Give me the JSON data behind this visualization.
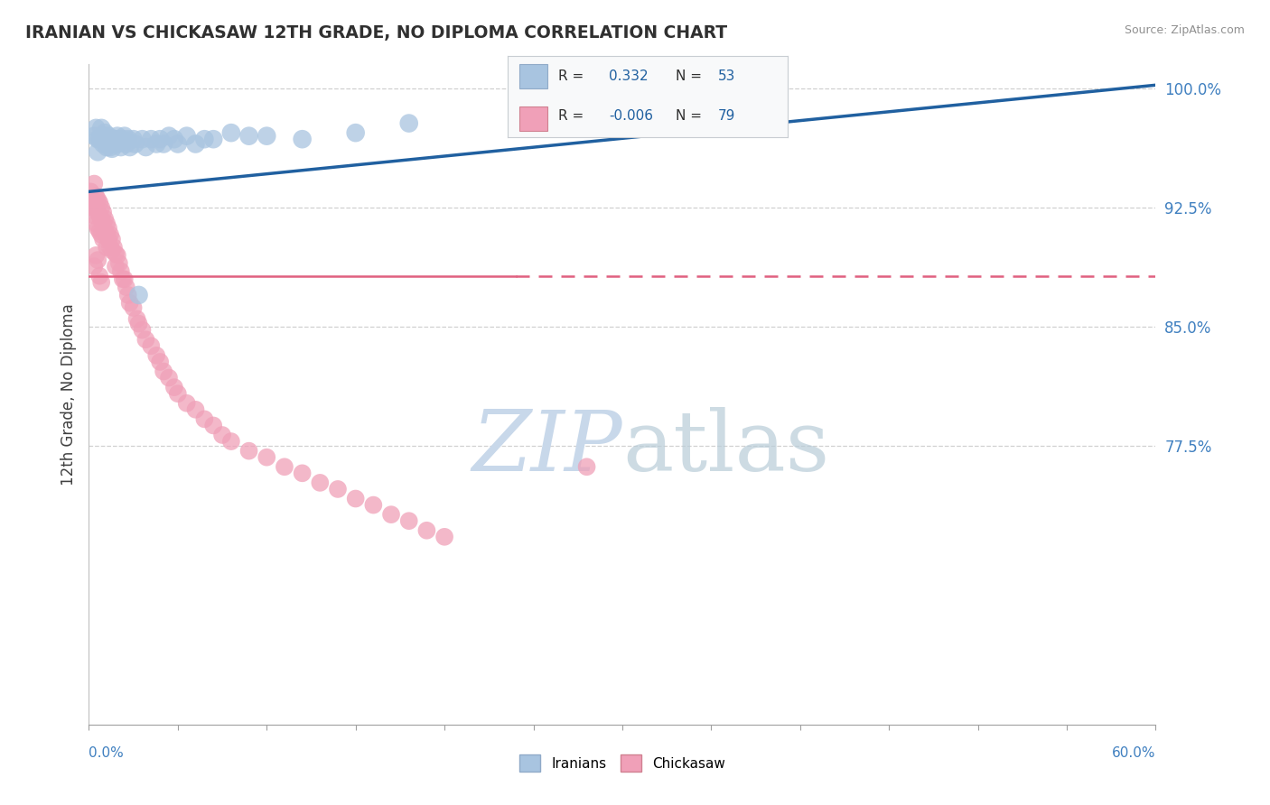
{
  "title": "IRANIAN VS CHICKASAW 12TH GRADE, NO DIPLOMA CORRELATION CHART",
  "source_text": "Source: ZipAtlas.com",
  "ylabel": "12th Grade, No Diploma",
  "xmin": 0.0,
  "xmax": 0.6,
  "ymin": 0.6,
  "ymax": 1.015,
  "yticks": [
    1.0,
    0.925,
    0.85,
    0.775
  ],
  "ytick_labels": [
    "100.0%",
    "92.5%",
    "85.0%",
    "77.5%"
  ],
  "iranian_R": 0.332,
  "iranian_N": 53,
  "chickasaw_R": -0.006,
  "chickasaw_N": 79,
  "iranian_color": "#a8c4e0",
  "iranian_line_color": "#2060a0",
  "chickasaw_color": "#f0a0b8",
  "chickasaw_line_color": "#e06080",
  "background_color": "#ffffff",
  "grid_color": "#d0d0d0",
  "title_color": "#303030",
  "axis_label_color": "#4080c0",
  "watermark_color": "#c8d8ea",
  "iranian_trend_x0": 0.0,
  "iranian_trend_y0": 0.935,
  "iranian_trend_x1": 0.6,
  "iranian_trend_y1": 1.002,
  "chickasaw_trend_x0": 0.0,
  "chickasaw_trend_y0": 0.882,
  "chickasaw_trend_x1": 0.6,
  "chickasaw_trend_y1": 0.882
}
